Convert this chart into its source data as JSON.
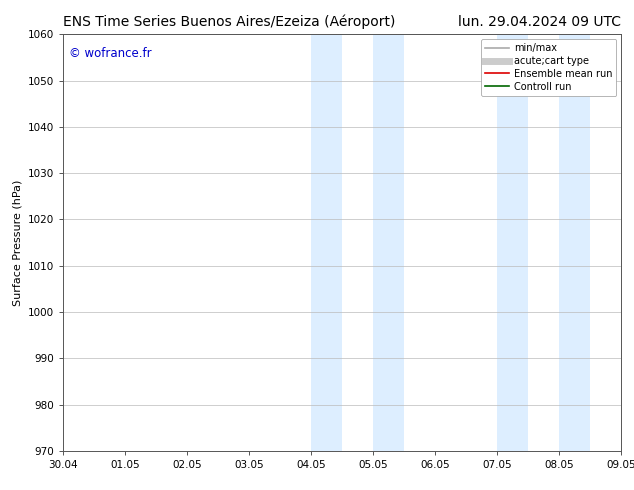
{
  "title_left": "ENS Time Series Buenos Aires/Ezeiza (Aéroport)",
  "title_right": "lun. 29.04.2024 09 UTC",
  "ylabel": "Surface Pressure (hPa)",
  "watermark": "© wofrance.fr",
  "watermark_color": "#0000cc",
  "ylim": [
    970,
    1060
  ],
  "yticks": [
    970,
    980,
    990,
    1000,
    1010,
    1020,
    1030,
    1040,
    1050,
    1060
  ],
  "xtick_labels": [
    "30.04",
    "01.05",
    "02.05",
    "03.05",
    "04.05",
    "05.05",
    "06.05",
    "07.05",
    "08.05",
    "09.05"
  ],
  "xtick_positions": [
    0,
    1,
    2,
    3,
    4,
    5,
    6,
    7,
    8,
    9
  ],
  "shaded_bands": [
    {
      "x_start": 4.0,
      "x_end": 4.5,
      "color": "#ddeeff"
    },
    {
      "x_start": 5.0,
      "x_end": 5.5,
      "color": "#ddeeff"
    },
    {
      "x_start": 7.0,
      "x_end": 7.5,
      "color": "#ddeeff"
    },
    {
      "x_start": 8.0,
      "x_end": 8.5,
      "color": "#ddeeff"
    }
  ],
  "legend_entries": [
    {
      "label": "min/max",
      "color": "#aaaaaa",
      "linestyle": "-",
      "linewidth": 1.2
    },
    {
      "label": "acute;cart type",
      "color": "#cccccc",
      "linestyle": "-",
      "linewidth": 5
    },
    {
      "label": "Ensemble mean run",
      "color": "#dd0000",
      "linestyle": "-",
      "linewidth": 1.2
    },
    {
      "label": "Controll run",
      "color": "#006600",
      "linestyle": "-",
      "linewidth": 1.2
    }
  ],
  "background_color": "#ffffff",
  "plot_bg_color": "#ffffff",
  "grid_color": "#bbbbbb",
  "title_fontsize": 10,
  "tick_fontsize": 7.5,
  "ylabel_fontsize": 8,
  "legend_fontsize": 7,
  "watermark_fontsize": 8.5
}
